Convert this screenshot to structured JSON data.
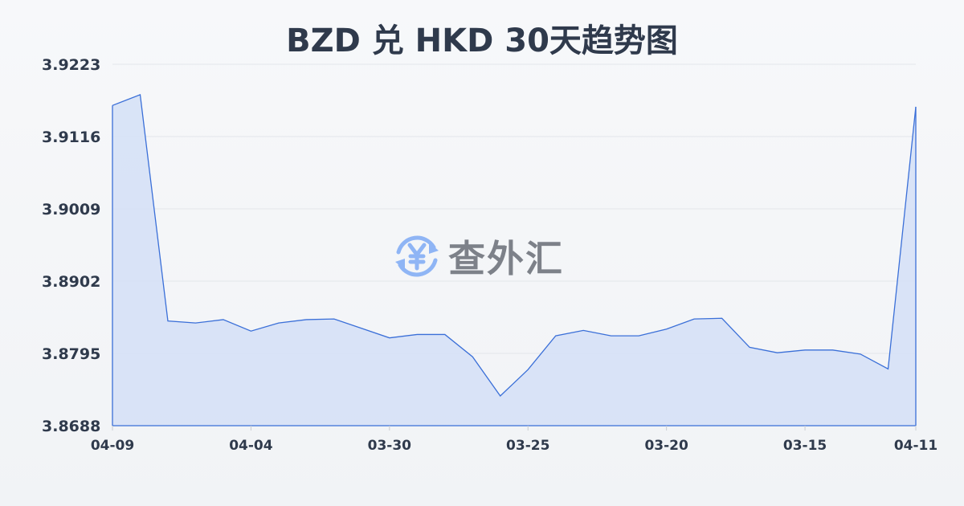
{
  "chart_data": {
    "type": "area",
    "title": "BZD 兑 HKD 30天趋势图",
    "xlabel": "",
    "ylabel": "",
    "ylim": [
      3.8688,
      3.9223
    ],
    "y_ticks": [
      "3.9223",
      "3.9116",
      "3.9009",
      "3.8902",
      "3.8795",
      "3.8688"
    ],
    "x_ticks": [
      {
        "index": 0,
        "label": "04-09"
      },
      {
        "index": 5,
        "label": "04-04"
      },
      {
        "index": 10,
        "label": "03-30"
      },
      {
        "index": 15,
        "label": "03-25"
      },
      {
        "index": 20,
        "label": "03-20"
      },
      {
        "index": 25,
        "label": "03-15"
      },
      {
        "index": 29,
        "label": "04-11"
      }
    ],
    "values": [
      3.9162,
      3.9178,
      3.8843,
      3.884,
      3.8845,
      3.8828,
      3.884,
      3.8845,
      3.8846,
      3.8832,
      3.8818,
      3.8823,
      3.8823,
      3.879,
      3.8732,
      3.8771,
      3.8821,
      3.8829,
      3.8821,
      3.8821,
      3.8831,
      3.8846,
      3.8847,
      3.8804,
      3.8796,
      3.88,
      3.88,
      3.8794,
      3.8772,
      3.916
    ],
    "grid": true,
    "colors": {
      "line": "#3a6fd8",
      "fill": "#d6e1f6",
      "grid": "#e3e6ea",
      "text": "#2f3a4c"
    }
  },
  "watermark": {
    "text": "查外汇",
    "icon": "yen-exchange-icon",
    "icon_color": "#8fb5f5"
  }
}
